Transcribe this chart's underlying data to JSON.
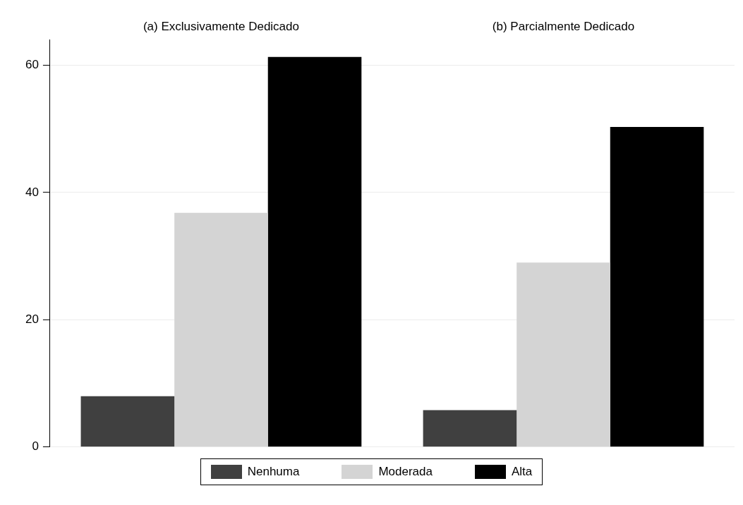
{
  "chart_data": {
    "type": "bar",
    "categories": [
      "(a) Exclusivamente Dedicado",
      "(b) Parcialmente Dedicado"
    ],
    "series": [
      {
        "name": "Nenhuma",
        "color": "#404040",
        "values": [
          8.0,
          5.8
        ]
      },
      {
        "name": "Moderada",
        "color": "#d4d4d4",
        "values": [
          36.8,
          29.0
        ]
      },
      {
        "name": "Alta",
        "color": "#000000",
        "values": [
          61.3,
          50.3
        ]
      }
    ],
    "ylim": [
      0,
      64
    ],
    "yticks": [
      0,
      20,
      40,
      60
    ],
    "grid": "y",
    "legend": "bottom"
  }
}
